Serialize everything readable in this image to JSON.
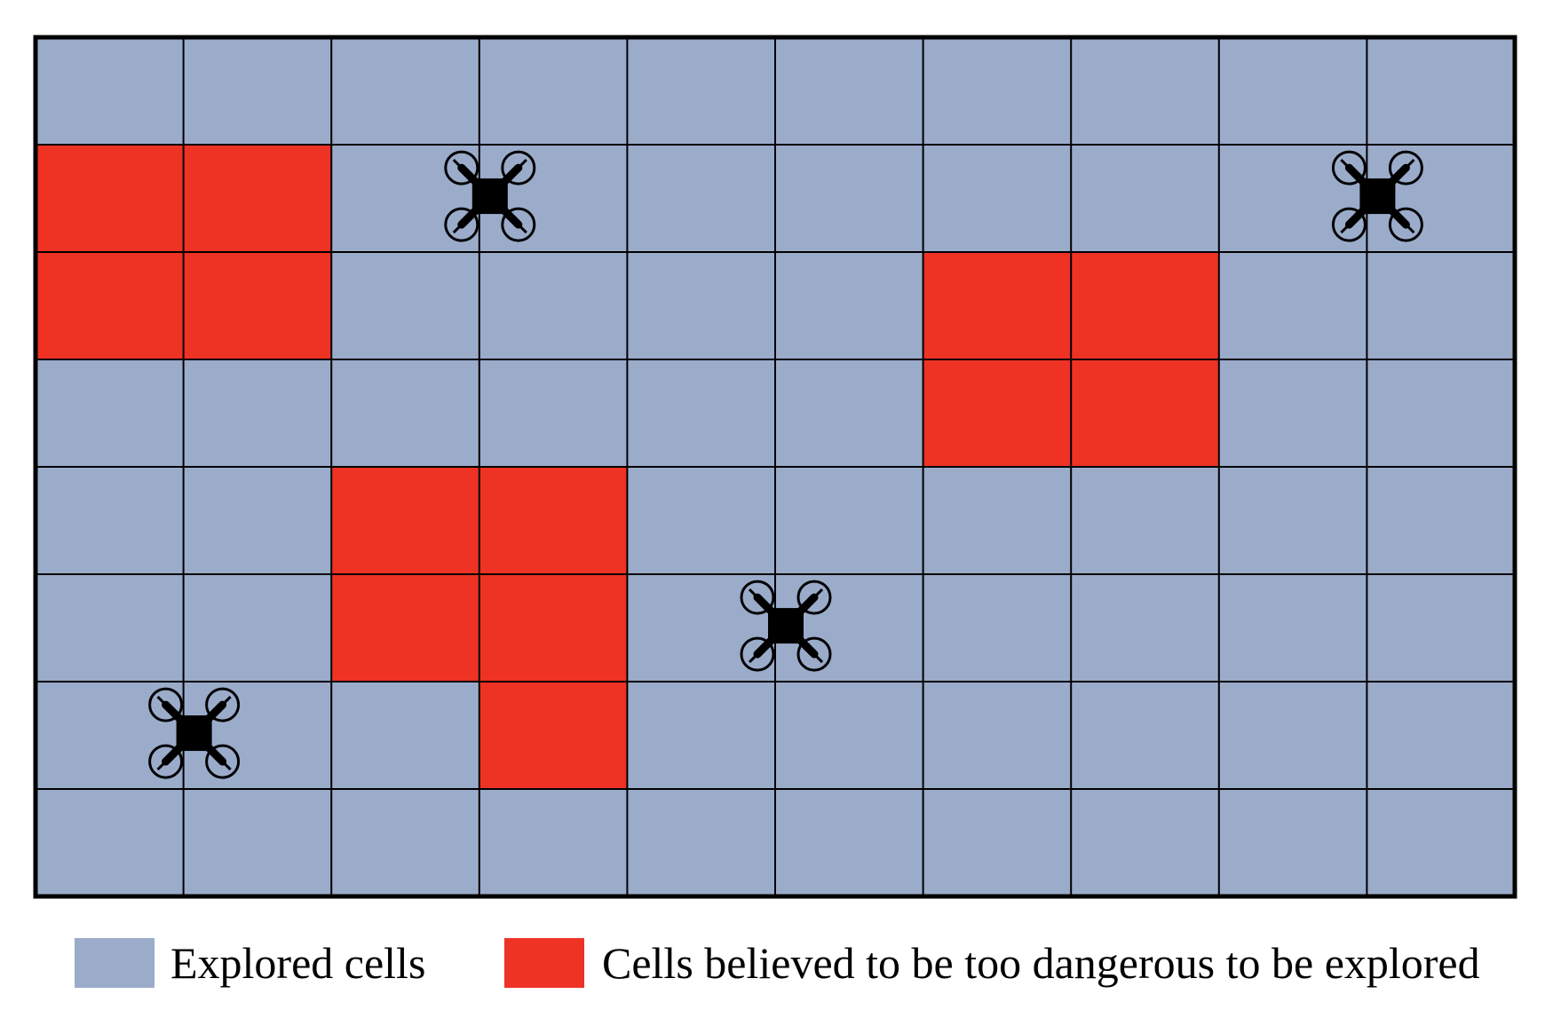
{
  "diagram": {
    "grid": {
      "rows": 8,
      "cols": 10,
      "explored_color": "#9BABCA",
      "danger_color": "#EE3224",
      "line_color": "#000000",
      "danger_cells": [
        [
          1,
          0
        ],
        [
          1,
          1
        ],
        [
          2,
          0
        ],
        [
          2,
          1
        ],
        [
          2,
          6
        ],
        [
          2,
          7
        ],
        [
          3,
          6
        ],
        [
          3,
          7
        ],
        [
          4,
          2
        ],
        [
          4,
          3
        ],
        [
          5,
          2
        ],
        [
          5,
          3
        ],
        [
          6,
          3
        ]
      ]
    },
    "drones": [
      {
        "icon": "drone-icon",
        "row": 1,
        "col": 3
      },
      {
        "icon": "drone-icon",
        "row": 1,
        "col": 9
      },
      {
        "icon": "drone-icon",
        "row": 5,
        "col": 5
      },
      {
        "icon": "drone-icon",
        "row": 6,
        "col": 1
      }
    ]
  },
  "legend": {
    "explored_label": "Explored cells",
    "danger_label": "Cells believed to be too dangerous to be explored"
  }
}
